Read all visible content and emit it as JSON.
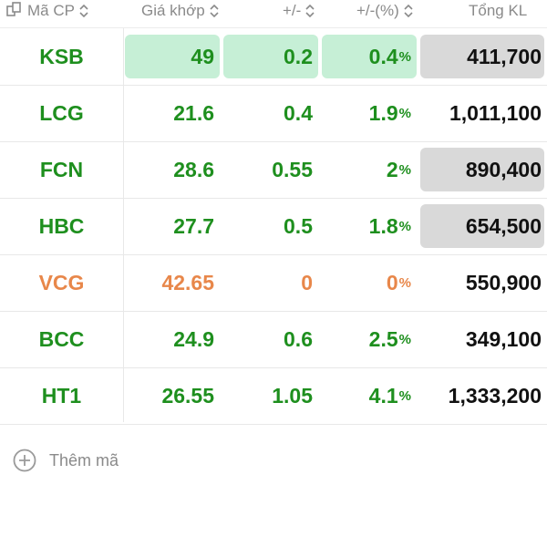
{
  "header": {
    "symbol": "Mã CP",
    "price": "Giá khớp",
    "change": "+/-",
    "change_pct": "+/-(%)",
    "volume": "Tổng KL"
  },
  "colors": {
    "up": "#1e8f1e",
    "ref": "#e8874a",
    "highlight_green": "#c6efd6",
    "highlight_gray": "#d9d9d9"
  },
  "rows": [
    {
      "symbol": "KSB",
      "price": "49",
      "change": "0.2",
      "change_pct": "0.4",
      "pct_sign": "%",
      "volume": "411,700",
      "status": "up"
    },
    {
      "symbol": "LCG",
      "price": "21.6",
      "change": "0.4",
      "change_pct": "1.9",
      "pct_sign": "%",
      "volume": "1,011,100",
      "status": "up"
    },
    {
      "symbol": "FCN",
      "price": "28.6",
      "change": "0.55",
      "change_pct": "2",
      "pct_sign": "%",
      "volume": "890,400",
      "status": "up"
    },
    {
      "symbol": "HBC",
      "price": "27.7",
      "change": "0.5",
      "change_pct": "1.8",
      "pct_sign": "%",
      "volume": "654,500",
      "status": "up"
    },
    {
      "symbol": "VCG",
      "price": "42.65",
      "change": "0",
      "change_pct": "0",
      "pct_sign": "%",
      "volume": "550,900",
      "status": "ref"
    },
    {
      "symbol": "BCC",
      "price": "24.9",
      "change": "0.6",
      "change_pct": "2.5",
      "pct_sign": "%",
      "volume": "349,100",
      "status": "up"
    },
    {
      "symbol": "HT1",
      "price": "26.55",
      "change": "1.05",
      "change_pct": "4.1",
      "pct_sign": "%",
      "volume": "1,333,200",
      "status": "up"
    }
  ],
  "add_symbol_label": "Thêm mã"
}
